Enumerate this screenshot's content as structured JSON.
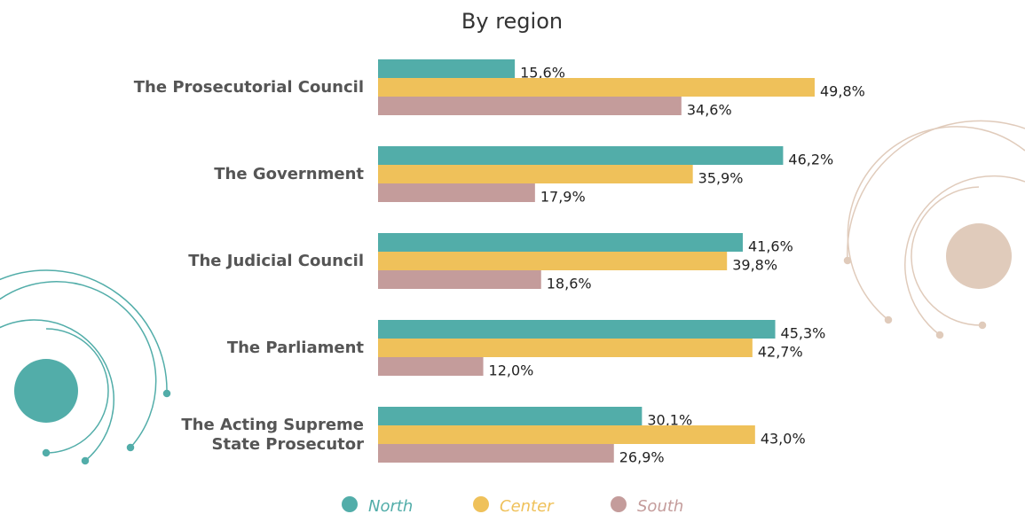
{
  "chart_data": {
    "type": "bar",
    "orientation": "horizontal",
    "title": "By region",
    "categories": [
      "The Prosecutorial Council",
      "The Government",
      "The Judicial Council",
      "The Parliament",
      "The Acting Supreme State Prosecutor"
    ],
    "series": [
      {
        "name": "North",
        "color": "#52ada9",
        "values": [
          15.6,
          46.2,
          41.6,
          45.3,
          30.1
        ],
        "value_labels": [
          "15,6%",
          "46,2%",
          "41,6%",
          "45,3%",
          "30,1%"
        ]
      },
      {
        "name": "Center",
        "color": "#efc15a",
        "values": [
          49.8,
          35.9,
          39.8,
          42.7,
          43.0
        ],
        "value_labels": [
          "49,8%",
          "35,9%",
          "39,8%",
          "42,7%",
          "43,0%"
        ]
      },
      {
        "name": "South",
        "color": "#c49c9b",
        "values": [
          34.6,
          17.9,
          18.6,
          12.0,
          26.9
        ],
        "value_labels": [
          "34,6%",
          "17,9%",
          "18,6%",
          "12,0%",
          "26,9%"
        ]
      }
    ],
    "legend": "bottom"
  }
}
